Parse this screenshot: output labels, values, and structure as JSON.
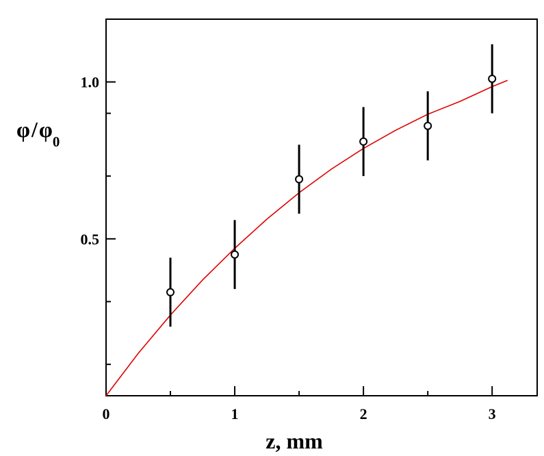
{
  "chart_data": {
    "type": "scatter",
    "title": "",
    "xlabel": "z, mm",
    "ylabel": {
      "symbol": "φ",
      "slash": "/",
      "denominator_symbol": "φ",
      "denominator_subscript": "0"
    },
    "xlim": [
      0,
      3.35
    ],
    "ylim": [
      0,
      1.2
    ],
    "x_ticks": [
      0,
      1,
      2,
      3
    ],
    "x_tick_labels": [
      "0",
      "1",
      "2",
      "3"
    ],
    "x_minor_ticks": [
      0.5,
      1.5,
      2.5
    ],
    "y_ticks": [
      0.5,
      1.0
    ],
    "y_tick_labels": [
      "0.5",
      "1.0"
    ],
    "y_minor_ticks": [
      0.1,
      0.3,
      0.7,
      0.9
    ],
    "grid": false,
    "series": [
      {
        "kind": "points_with_errorbars",
        "marker": "open-circle",
        "color": "#000000",
        "x": [
          0.5,
          1.0,
          1.5,
          2.0,
          2.5,
          3.0
        ],
        "y": [
          0.33,
          0.45,
          0.69,
          0.81,
          0.86,
          1.01
        ],
        "err": [
          0.11,
          0.11,
          0.11,
          0.11,
          0.11,
          0.11
        ]
      },
      {
        "kind": "fit_curve",
        "color": "#e00000",
        "x": [
          0,
          0.25,
          0.5,
          0.75,
          1.0,
          1.25,
          1.5,
          1.75,
          2.0,
          2.25,
          2.5,
          2.75,
          3.0,
          3.12
        ],
        "y": [
          0,
          0.135,
          0.257,
          0.369,
          0.47,
          0.563,
          0.647,
          0.722,
          0.788,
          0.846,
          0.897,
          0.938,
          0.985,
          1.005
        ]
      }
    ]
  }
}
